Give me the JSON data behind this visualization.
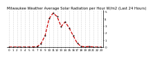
{
  "title": "Milwaukee Weather Average Solar Radiation per Hour W/m2 (Last 24 Hours)",
  "x_hours": [
    0,
    1,
    2,
    3,
    4,
    5,
    6,
    7,
    8,
    9,
    10,
    11,
    12,
    13,
    14,
    15,
    16,
    17,
    18,
    19,
    20,
    21,
    22,
    23
  ],
  "y_values": [
    0,
    0,
    0,
    0,
    0,
    0,
    2,
    5,
    50,
    160,
    400,
    480,
    430,
    290,
    355,
    270,
    160,
    55,
    8,
    3,
    8,
    0,
    0,
    0
  ],
  "line_color": "#cc0000",
  "line_style": "--",
  "marker": "o",
  "marker_size": 1.2,
  "linewidth": 0.9,
  "ylim": [
    0,
    520
  ],
  "yticks": [
    0,
    100,
    200,
    300,
    400,
    500
  ],
  "ytick_labels": [
    "0",
    "1",
    "2",
    "3",
    "4",
    "5"
  ],
  "background_color": "#ffffff",
  "grid_color": "#aaaaaa",
  "title_fontsize": 3.8,
  "tick_fontsize": 3.0
}
